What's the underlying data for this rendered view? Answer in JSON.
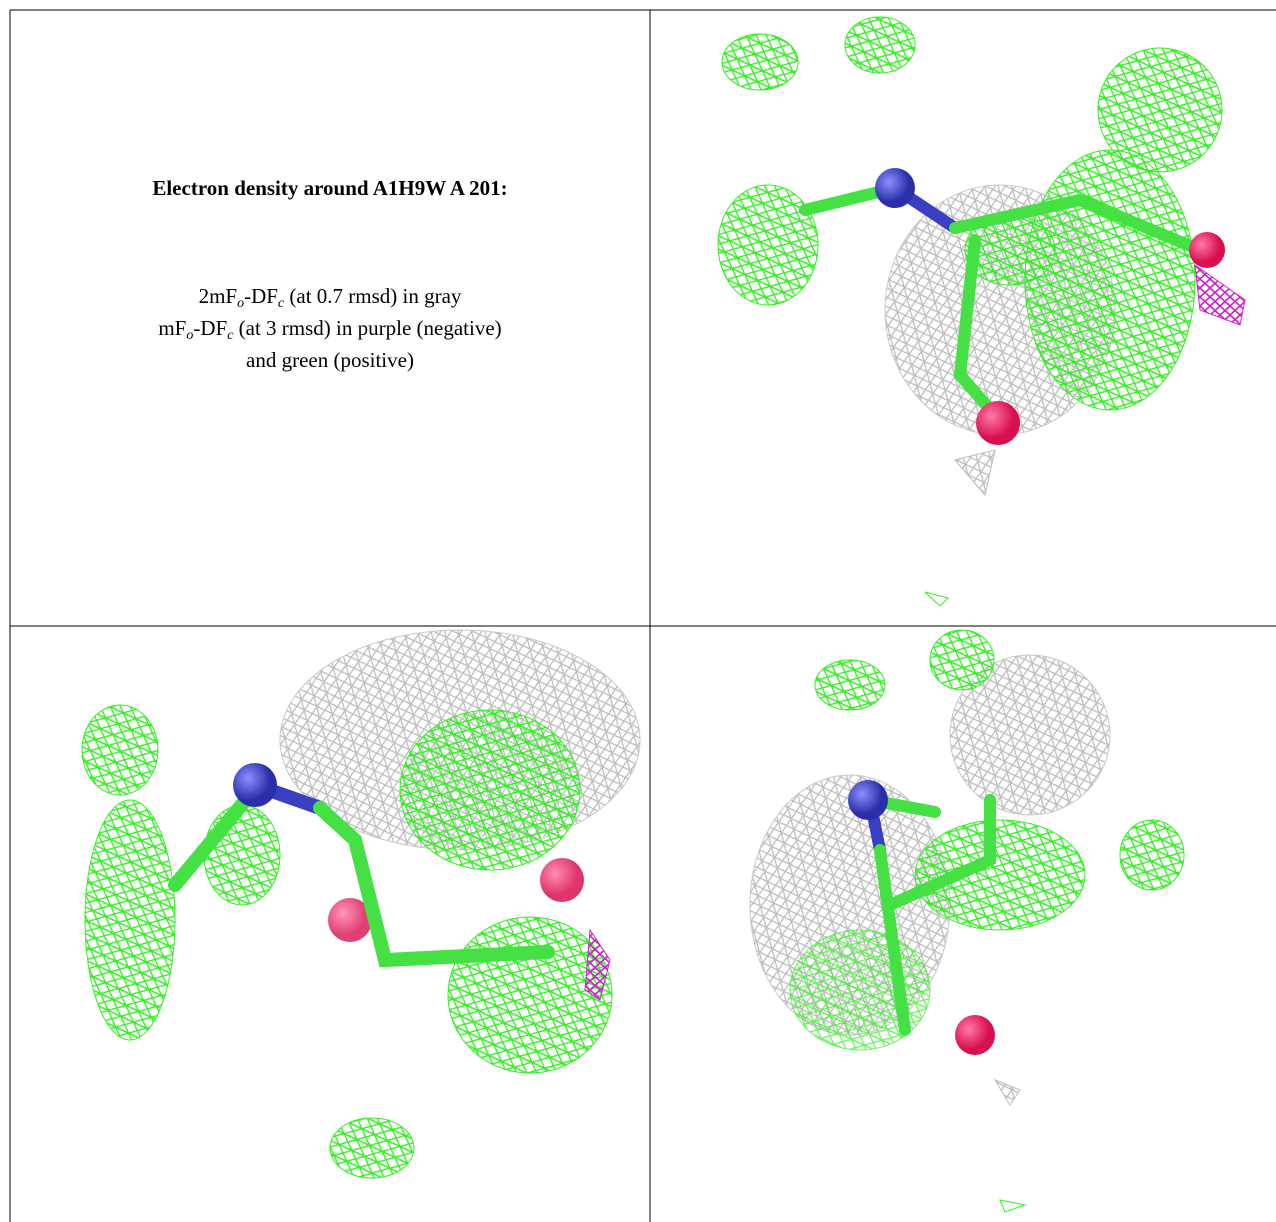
{
  "panel": {
    "title": "Electron density around A1H9W A 201:",
    "legend": [
      [
        "2mF",
        "o",
        "-DF",
        "c",
        " (at 0.7 rmsd) in gray"
      ],
      [
        "mF",
        "o",
        "-DF",
        "c",
        " (at 3 rmsd) in purple (negative)"
      ],
      [
        "and green (positive)"
      ]
    ]
  }
}
